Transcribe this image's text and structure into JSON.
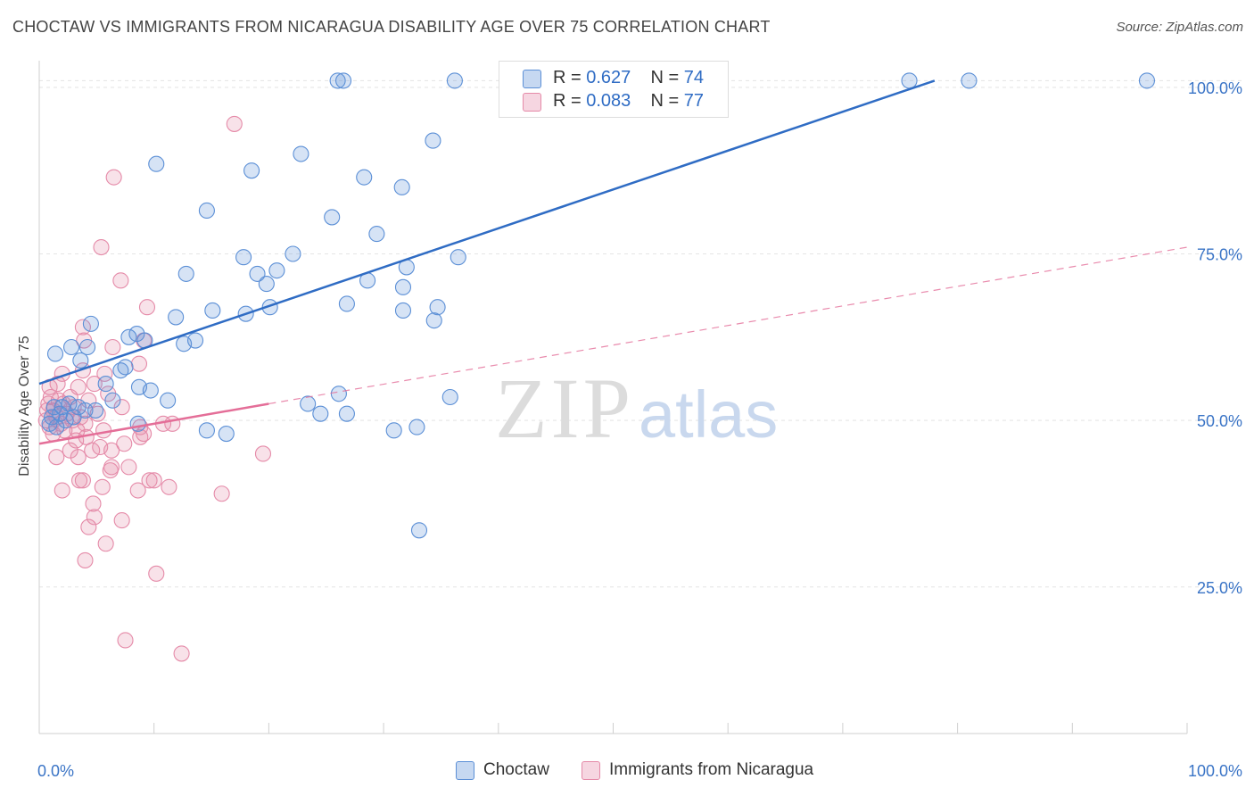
{
  "header": {
    "title": "CHOCTAW VS IMMIGRANTS FROM NICARAGUA DISABILITY AGE OVER 75 CORRELATION CHART",
    "source": "Source: ZipAtlas.com"
  },
  "watermark": {
    "zip": "ZIP",
    "atlas": "atlas"
  },
  "stats": {
    "choctaw": {
      "r_label": "R = ",
      "r_value": "0.627",
      "n_label": "N = ",
      "n_value": "74",
      "color": "#5b8fd6"
    },
    "nicaragua": {
      "r_label": "R = ",
      "r_value": "0.083",
      "n_label": "N = ",
      "n_value": "77",
      "color": "#e58aa8"
    }
  },
  "legend": {
    "choctaw": "Choctaw",
    "nicaragua": "Immigrants from Nicaragua"
  },
  "chart_data": {
    "type": "scatter",
    "title": "CHOCTAW VS IMMIGRANTS FROM NICARAGUA DISABILITY AGE OVER 75 CORRELATION CHART",
    "xlabel": "",
    "ylabel": "Disability Age Over 75",
    "xlim": [
      0,
      100
    ],
    "ylim": [
      3,
      104
    ],
    "x_ticks": [
      0,
      10,
      20,
      30,
      40,
      50,
      60,
      70,
      80,
      90,
      100
    ],
    "x_tick_labels": [
      "0.0%",
      "100.0%"
    ],
    "y_ticks": [
      25,
      50,
      75,
      100
    ],
    "y_tick_labels": [
      "25.0%",
      "50.0%",
      "75.0%",
      "100.0%"
    ],
    "grid": "horizontal dashed",
    "legend_position": "bottom",
    "series": [
      {
        "name": "Choctaw",
        "color": "#5b8fd6",
        "fill": "rgba(91,143,214,0.25)",
        "points": [
          [
            26.0,
            101
          ],
          [
            26.5,
            101
          ],
          [
            36.2,
            101
          ],
          [
            45.0,
            101
          ],
          [
            75.8,
            101
          ],
          [
            81.0,
            101
          ],
          [
            96.5,
            101
          ],
          [
            34.3,
            92
          ],
          [
            22.8,
            90
          ],
          [
            10.2,
            88.5
          ],
          [
            18.5,
            87.5
          ],
          [
            28.3,
            86.5
          ],
          [
            31.6,
            85
          ],
          [
            14.6,
            81.5
          ],
          [
            25.5,
            80.5
          ],
          [
            29.4,
            78
          ],
          [
            17.8,
            74.5
          ],
          [
            22.1,
            75
          ],
          [
            36.5,
            74.5
          ],
          [
            32.0,
            73
          ],
          [
            12.8,
            72
          ],
          [
            28.6,
            71
          ],
          [
            20.7,
            72.5
          ],
          [
            19.0,
            72
          ],
          [
            31.7,
            70
          ],
          [
            19.8,
            70.5
          ],
          [
            26.8,
            67.5
          ],
          [
            34.7,
            67
          ],
          [
            15.1,
            66.5
          ],
          [
            20.1,
            67
          ],
          [
            18.0,
            66
          ],
          [
            34.4,
            65
          ],
          [
            31.7,
            66.5
          ],
          [
            11.9,
            65.5
          ],
          [
            4.5,
            64.5
          ],
          [
            7.8,
            62.5
          ],
          [
            8.5,
            63
          ],
          [
            12.6,
            61.5
          ],
          [
            9.2,
            62
          ],
          [
            13.6,
            62
          ],
          [
            4.2,
            61
          ],
          [
            2.8,
            61
          ],
          [
            1.4,
            60
          ],
          [
            3.6,
            59
          ],
          [
            7.5,
            58
          ],
          [
            7.1,
            57.5
          ],
          [
            5.8,
            55.5
          ],
          [
            8.7,
            55
          ],
          [
            26.1,
            54
          ],
          [
            35.8,
            53.5
          ],
          [
            2.0,
            52
          ],
          [
            1.3,
            52
          ],
          [
            26.8,
            51
          ],
          [
            4.0,
            51.5
          ],
          [
            8.6,
            49.5
          ],
          [
            11.2,
            53
          ],
          [
            9.7,
            54.5
          ],
          [
            16.3,
            48
          ],
          [
            23.4,
            52.5
          ],
          [
            14.6,
            48.5
          ],
          [
            30.9,
            48.5
          ],
          [
            32.9,
            49
          ],
          [
            24.5,
            51
          ],
          [
            33.1,
            33.5
          ],
          [
            1.1,
            50.5
          ],
          [
            1.5,
            49
          ],
          [
            2.3,
            50
          ],
          [
            4.9,
            51.5
          ],
          [
            3.0,
            50.5
          ],
          [
            2.6,
            52.5
          ],
          [
            1.8,
            51
          ],
          [
            6.4,
            53
          ],
          [
            0.9,
            49.5
          ],
          [
            3.4,
            52
          ]
        ]
      },
      {
        "name": "Immigrants from Nicaragua",
        "color": "#e58aa8",
        "fill": "rgba(229,138,168,0.25)",
        "points": [
          [
            17.0,
            94.5
          ],
          [
            6.5,
            86.5
          ],
          [
            5.4,
            76
          ],
          [
            7.1,
            71
          ],
          [
            9.4,
            67
          ],
          [
            3.8,
            64
          ],
          [
            3.9,
            62
          ],
          [
            9.1,
            62
          ],
          [
            6.4,
            61
          ],
          [
            8.7,
            58.5
          ],
          [
            3.8,
            57.5
          ],
          [
            5.7,
            57
          ],
          [
            2.0,
            57
          ],
          [
            4.8,
            55.5
          ],
          [
            1.6,
            55.5
          ],
          [
            0.9,
            55
          ],
          [
            3.4,
            55
          ],
          [
            6.0,
            54
          ],
          [
            1.0,
            53.5
          ],
          [
            2.7,
            53.5
          ],
          [
            4.3,
            53
          ],
          [
            1.7,
            53
          ],
          [
            0.8,
            52.5
          ],
          [
            2.1,
            52.5
          ],
          [
            3.0,
            52
          ],
          [
            0.7,
            51.5
          ],
          [
            1.2,
            51.5
          ],
          [
            5.1,
            51
          ],
          [
            2.4,
            51
          ],
          [
            1.5,
            50.5
          ],
          [
            3.6,
            50.5
          ],
          [
            0.6,
            50
          ],
          [
            2.9,
            50
          ],
          [
            4.0,
            49.5
          ],
          [
            1.9,
            49.5
          ],
          [
            0.9,
            49
          ],
          [
            2.2,
            48.5
          ],
          [
            3.3,
            48.5
          ],
          [
            5.6,
            48.5
          ],
          [
            7.2,
            52
          ],
          [
            8.8,
            49
          ],
          [
            1.2,
            48
          ],
          [
            4.1,
            47.5
          ],
          [
            3.2,
            47
          ],
          [
            7.4,
            46.5
          ],
          [
            5.3,
            46
          ],
          [
            9.1,
            48
          ],
          [
            8.8,
            47.5
          ],
          [
            10.8,
            49.5
          ],
          [
            11.6,
            49.5
          ],
          [
            4.6,
            45.5
          ],
          [
            6.3,
            45.5
          ],
          [
            2.7,
            45.5
          ],
          [
            3.4,
            44.5
          ],
          [
            1.5,
            44.5
          ],
          [
            7.8,
            43
          ],
          [
            6.3,
            43
          ],
          [
            9.6,
            41
          ],
          [
            19.5,
            45
          ],
          [
            6.2,
            42.5
          ],
          [
            5.5,
            40
          ],
          [
            3.8,
            41
          ],
          [
            11.3,
            40
          ],
          [
            8.6,
            39.5
          ],
          [
            3.5,
            41
          ],
          [
            15.9,
            39
          ],
          [
            10.0,
            41
          ],
          [
            2.0,
            39.5
          ],
          [
            4.7,
            37.5
          ],
          [
            4.8,
            35.5
          ],
          [
            7.2,
            35
          ],
          [
            4.3,
            34
          ],
          [
            5.8,
            31.5
          ],
          [
            4.0,
            29
          ],
          [
            10.2,
            27
          ],
          [
            7.5,
            17
          ],
          [
            12.4,
            15
          ]
        ]
      }
    ],
    "trendlines": [
      {
        "series": "Choctaw",
        "x": [
          0,
          78
        ],
        "y": [
          55.5,
          101
        ],
        "style": "solid"
      },
      {
        "series": "Immigrants from Nicaragua",
        "x": [
          0,
          20
        ],
        "y": [
          46.5,
          52.5
        ],
        "style": "solid"
      },
      {
        "series": "Immigrants from Nicaragua",
        "x": [
          20,
          100
        ],
        "y": [
          52.5,
          76
        ],
        "style": "dashed"
      }
    ]
  }
}
